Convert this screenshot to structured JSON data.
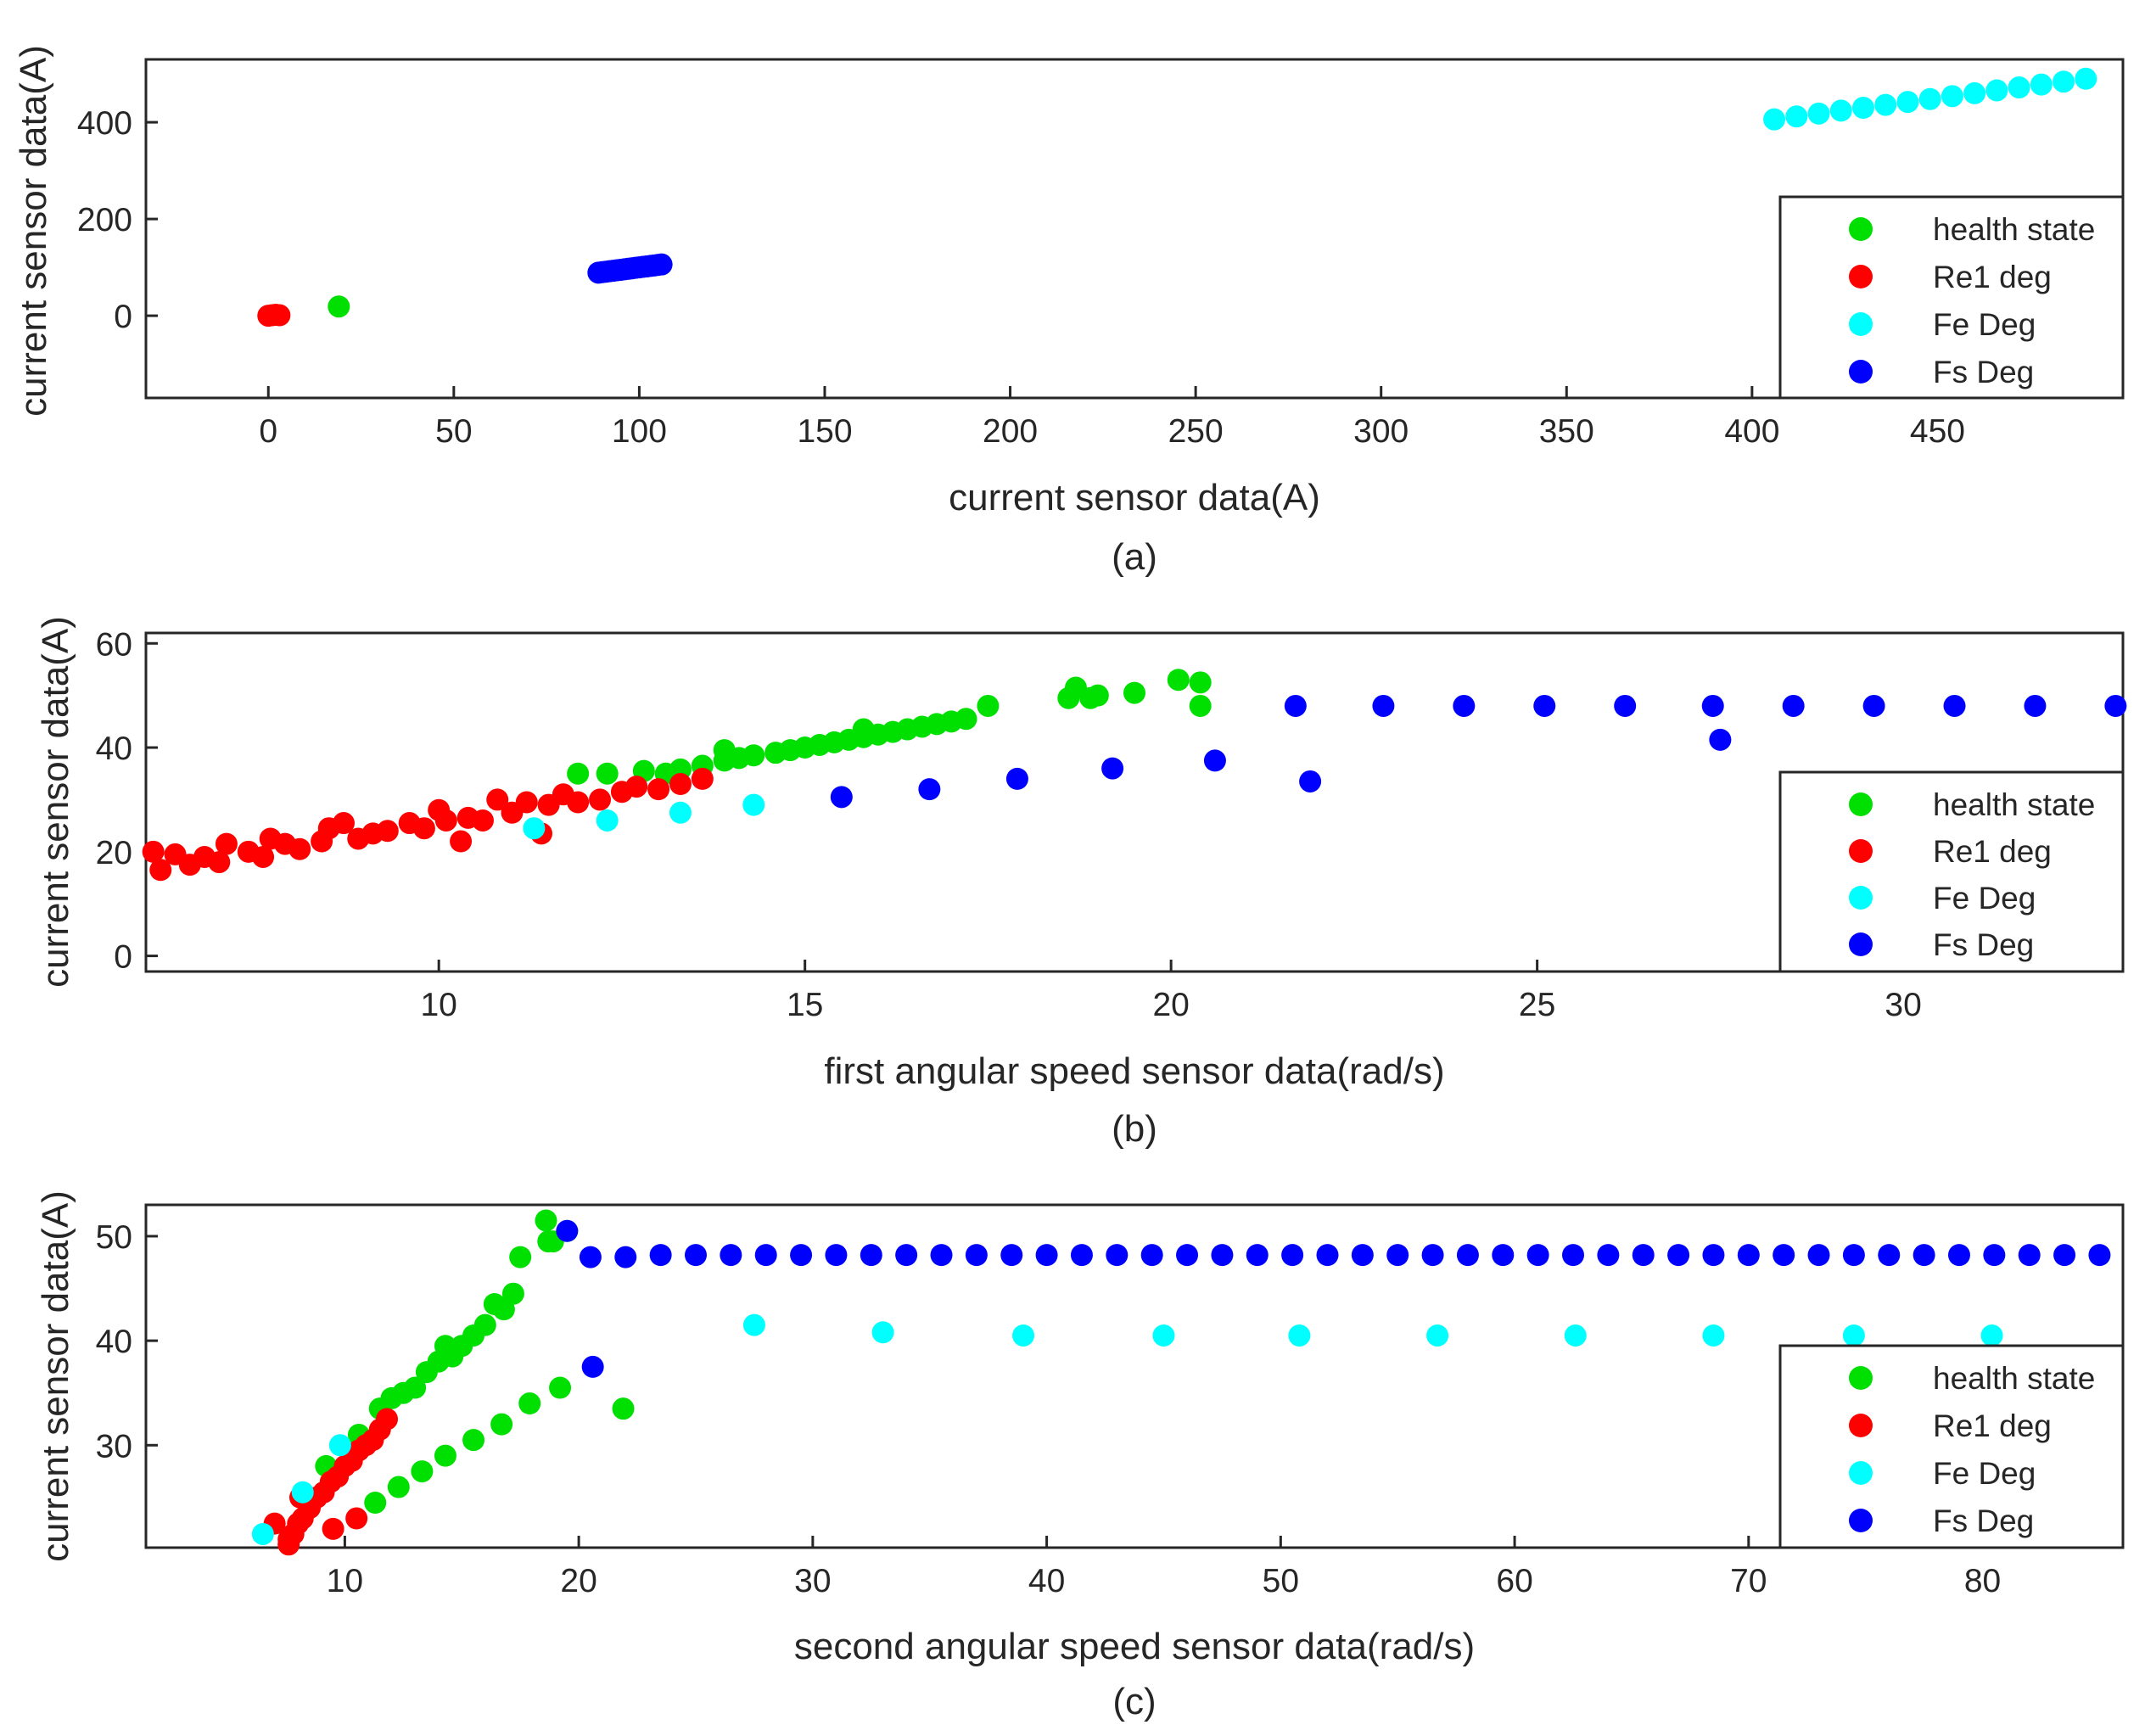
{
  "series_meta": [
    {
      "key": "health",
      "label": "health state",
      "color": "#00e000"
    },
    {
      "key": "re1",
      "label": "Re1 deg",
      "color": "#ff0000"
    },
    {
      "key": "fe",
      "label": "Fe Deg",
      "color": "#00ffff"
    },
    {
      "key": "fs",
      "label": "Fs Deg",
      "color": "#0000ff"
    }
  ],
  "chart_data": [
    {
      "id": "a",
      "type": "scatter",
      "caption": "(a)",
      "xlabel": "current sensor data(A)",
      "ylabel": "current sensor data(A)",
      "xlim": [
        -33,
        500
      ],
      "ylim": [
        -170,
        530
      ],
      "xticks": [
        0,
        50,
        100,
        150,
        200,
        250,
        300,
        350,
        400,
        450
      ],
      "yticks": [
        0,
        200,
        400
      ],
      "series": [
        {
          "name": "health state",
          "points": [
            [
              19,
              19
            ]
          ]
        },
        {
          "name": "Re1 deg",
          "points": [
            [
              0,
              0
            ],
            [
              1,
              1
            ],
            [
              2,
              2
            ],
            [
              3,
              1
            ]
          ]
        },
        {
          "name": "Fe Deg",
          "points": [
            [
              406,
              406
            ],
            [
              412,
              412
            ],
            [
              418,
              418
            ],
            [
              424,
              424
            ],
            [
              430,
              430
            ],
            [
              436,
              436
            ],
            [
              442,
              442
            ],
            [
              448,
              448
            ],
            [
              454,
              454
            ],
            [
              460,
              460
            ],
            [
              466,
              466
            ],
            [
              472,
              472
            ],
            [
              478,
              478
            ],
            [
              484,
              484
            ],
            [
              490,
              490
            ]
          ]
        },
        {
          "name": "Fs Deg",
          "points": [
            [
              89,
              89
            ],
            [
              90,
              90
            ],
            [
              91,
              91
            ],
            [
              92,
              92
            ],
            [
              93,
              93
            ],
            [
              94,
              94
            ],
            [
              95,
              95
            ],
            [
              96,
              96
            ],
            [
              97,
              97
            ],
            [
              98,
              98
            ],
            [
              99,
              99
            ],
            [
              100,
              100
            ],
            [
              101,
              101
            ],
            [
              102,
              102
            ],
            [
              103,
              103
            ],
            [
              104,
              104
            ],
            [
              105,
              105
            ],
            [
              106,
              106
            ]
          ]
        }
      ]
    },
    {
      "id": "b",
      "type": "scatter",
      "caption": "(b)",
      "xlabel": "first angular speed sensor data(rad/s)",
      "ylabel": "current sensor data(A)",
      "xlim": [
        6,
        33
      ],
      "ylim": [
        -3,
        62
      ],
      "xticks": [
        10,
        15,
        20,
        25,
        30
      ],
      "yticks": [
        0,
        20,
        40,
        60
      ],
      "series": [
        {
          "name": "health state",
          "points": [
            [
              11.9,
              35
            ],
            [
              12.3,
              35
            ],
            [
              12.8,
              35.5
            ],
            [
              13.1,
              35
            ],
            [
              13.3,
              35.8
            ],
            [
              13.6,
              36.5
            ],
            [
              13.9,
              37.5
            ],
            [
              14.1,
              38
            ],
            [
              14.3,
              38.5
            ],
            [
              14.6,
              39
            ],
            [
              14.8,
              39.5
            ],
            [
              15.0,
              40
            ],
            [
              15.2,
              40.5
            ],
            [
              15.4,
              41
            ],
            [
              15.6,
              41.5
            ],
            [
              15.8,
              42
            ],
            [
              16.0,
              42.5
            ],
            [
              16.2,
              43
            ],
            [
              16.4,
              43.5
            ],
            [
              16.6,
              44
            ],
            [
              16.8,
              44.5
            ],
            [
              17.0,
              45
            ],
            [
              17.2,
              45.5
            ],
            [
              17.5,
              48
            ],
            [
              18.6,
              49.5
            ],
            [
              18.7,
              51.5
            ],
            [
              18.9,
              49.5
            ],
            [
              19.0,
              50
            ],
            [
              19.5,
              50.5
            ],
            [
              20.1,
              53
            ],
            [
              20.4,
              52.5
            ],
            [
              20.4,
              48
            ],
            [
              13.9,
              39.5
            ],
            [
              15.8,
              43.5
            ]
          ]
        },
        {
          "name": "Re1 deg",
          "points": [
            [
              6.1,
              20
            ],
            [
              6.2,
              16.5
            ],
            [
              6.4,
              19.5
            ],
            [
              6.6,
              17.5
            ],
            [
              6.8,
              19
            ],
            [
              7.0,
              18
            ],
            [
              7.1,
              21.5
            ],
            [
              7.4,
              20
            ],
            [
              7.6,
              19
            ],
            [
              7.7,
              22.5
            ],
            [
              7.9,
              21.5
            ],
            [
              8.1,
              20.5
            ],
            [
              8.4,
              22
            ],
            [
              8.5,
              24.5
            ],
            [
              8.7,
              25.5
            ],
            [
              8.9,
              22.5
            ],
            [
              9.1,
              23.5
            ],
            [
              9.3,
              24
            ],
            [
              9.6,
              25.5
            ],
            [
              9.8,
              24.5
            ],
            [
              10.0,
              28
            ],
            [
              10.1,
              26
            ],
            [
              10.3,
              22
            ],
            [
              10.4,
              26.5
            ],
            [
              10.6,
              26
            ],
            [
              10.8,
              30
            ],
            [
              11.0,
              27.5
            ],
            [
              11.2,
              29.5
            ],
            [
              11.4,
              23.5
            ],
            [
              11.5,
              29
            ],
            [
              11.7,
              31
            ],
            [
              11.9,
              29.5
            ],
            [
              12.2,
              30
            ],
            [
              12.5,
              31.5
            ],
            [
              12.7,
              32.5
            ],
            [
              13.0,
              32
            ],
            [
              13.3,
              33
            ],
            [
              13.6,
              34
            ]
          ]
        },
        {
          "name": "Fe Deg",
          "points": [
            [
              11.3,
              24.5
            ],
            [
              12.3,
              26
            ],
            [
              13.3,
              27.5
            ],
            [
              14.3,
              29
            ]
          ]
        },
        {
          "name": "Fs Deg",
          "points": [
            [
              15.5,
              30.5
            ],
            [
              16.7,
              32
            ],
            [
              17.9,
              34
            ],
            [
              19.2,
              36
            ],
            [
              20.6,
              37.5
            ],
            [
              21.9,
              33.5
            ],
            [
              27.5,
              41.5
            ],
            [
              21.7,
              48
            ],
            [
              22.9,
              48
            ],
            [
              24.0,
              48
            ],
            [
              25.1,
              48
            ],
            [
              26.2,
              48
            ],
            [
              27.4,
              48
            ],
            [
              28.5,
              48
            ],
            [
              29.6,
              48
            ],
            [
              30.7,
              48
            ],
            [
              31.8,
              48
            ],
            [
              32.9,
              48
            ]
          ]
        }
      ]
    },
    {
      "id": "c",
      "type": "scatter",
      "caption": "(c)",
      "xlabel": "second angular speed sensor data(rad/s)",
      "ylabel": "current sensor data(A)",
      "xlim": [
        1.5,
        86
      ],
      "ylim": [
        20.2,
        53
      ],
      "xticks": [
        10,
        20,
        30,
        40,
        50,
        60,
        70,
        80
      ],
      "yticks": [
        30,
        40,
        50
      ],
      "series": [
        {
          "name": "health state",
          "points": [
            [
              9.2,
              28
            ],
            [
              10.6,
              31
            ],
            [
              11.5,
              33.5
            ],
            [
              12.0,
              34.5
            ],
            [
              12.5,
              35
            ],
            [
              13.0,
              35.5
            ],
            [
              13.5,
              37
            ],
            [
              14.0,
              38
            ],
            [
              14.3,
              39.5
            ],
            [
              14.6,
              38.5
            ],
            [
              15.0,
              39.5
            ],
            [
              15.5,
              40.5
            ],
            [
              16.0,
              41.5
            ],
            [
              16.4,
              43.5
            ],
            [
              16.8,
              43
            ],
            [
              17.2,
              44.5
            ],
            [
              17.5,
              48
            ],
            [
              18.6,
              51.5
            ],
            [
              18.7,
              49.5
            ],
            [
              18.9,
              49.5
            ],
            [
              19.5,
              50.5
            ],
            [
              11.3,
              24.5
            ],
            [
              12.3,
              26
            ],
            [
              13.3,
              27.5
            ],
            [
              14.3,
              29
            ],
            [
              15.5,
              30.5
            ],
            [
              16.7,
              32
            ],
            [
              17.9,
              34
            ],
            [
              19.2,
              35.5
            ],
            [
              21.9,
              33.5
            ]
          ]
        },
        {
          "name": "Re1 deg",
          "points": [
            [
              7.0,
              22.5
            ],
            [
              7.6,
              21
            ],
            [
              7.8,
              21.5
            ],
            [
              8.0,
              22.5
            ],
            [
              8.2,
              23
            ],
            [
              8.5,
              24
            ],
            [
              8.8,
              25
            ],
            [
              9.1,
              25.5
            ],
            [
              9.4,
              26.5
            ],
            [
              9.7,
              27
            ],
            [
              10.0,
              28
            ],
            [
              10.3,
              28.5
            ],
            [
              10.6,
              29.5
            ],
            [
              10.9,
              30
            ],
            [
              11.2,
              30.5
            ],
            [
              11.5,
              31.5
            ],
            [
              11.8,
              32.5
            ],
            [
              8.1,
              25
            ],
            [
              9.5,
              22
            ],
            [
              10.5,
              23
            ],
            [
              7.6,
              20.5
            ]
          ]
        },
        {
          "name": "Fe Deg",
          "points": [
            [
              6.5,
              21.5
            ],
            [
              8.2,
              25.5
            ],
            [
              9.8,
              30
            ],
            [
              27.5,
              41.5
            ],
            [
              33,
              40.8
            ],
            [
              39,
              40.5
            ],
            [
              45,
              40.5
            ],
            [
              50.8,
              40.5
            ],
            [
              56.7,
              40.5
            ],
            [
              62.6,
              40.5
            ],
            [
              68.5,
              40.5
            ],
            [
              74.5,
              40.5
            ],
            [
              80.4,
              40.5
            ]
          ]
        },
        {
          "name": "Fs Deg",
          "points": [
            [
              19.5,
              50.5
            ],
            [
              20.6,
              37.5
            ],
            [
              20.5,
              48
            ],
            [
              22,
              48
            ],
            [
              23.5,
              48.2
            ],
            [
              25,
              48.2
            ],
            [
              26.5,
              48.2
            ],
            [
              28,
              48.2
            ],
            [
              29.5,
              48.2
            ],
            [
              31,
              48.2
            ],
            [
              32.5,
              48.2
            ],
            [
              34,
              48.2
            ],
            [
              35.5,
              48.2
            ],
            [
              37,
              48.2
            ],
            [
              38.5,
              48.2
            ],
            [
              40,
              48.2
            ],
            [
              41.5,
              48.2
            ],
            [
              43,
              48.2
            ],
            [
              44.5,
              48.2
            ],
            [
              46,
              48.2
            ],
            [
              47.5,
              48.2
            ],
            [
              49,
              48.2
            ],
            [
              50.5,
              48.2
            ],
            [
              52,
              48.2
            ],
            [
              53.5,
              48.2
            ],
            [
              55,
              48.2
            ],
            [
              56.5,
              48.2
            ],
            [
              58,
              48.2
            ],
            [
              59.5,
              48.2
            ],
            [
              61,
              48.2
            ],
            [
              62.5,
              48.2
            ],
            [
              64,
              48.2
            ],
            [
              65.5,
              48.2
            ],
            [
              67,
              48.2
            ],
            [
              68.5,
              48.2
            ],
            [
              70,
              48.2
            ],
            [
              71.5,
              48.2
            ],
            [
              73,
              48.2
            ],
            [
              74.5,
              48.2
            ],
            [
              76,
              48.2
            ],
            [
              77.5,
              48.2
            ],
            [
              79,
              48.2
            ],
            [
              80.5,
              48.2
            ],
            [
              82,
              48.2
            ],
            [
              83.5,
              48.2
            ],
            [
              85,
              48.2
            ]
          ]
        }
      ]
    }
  ]
}
